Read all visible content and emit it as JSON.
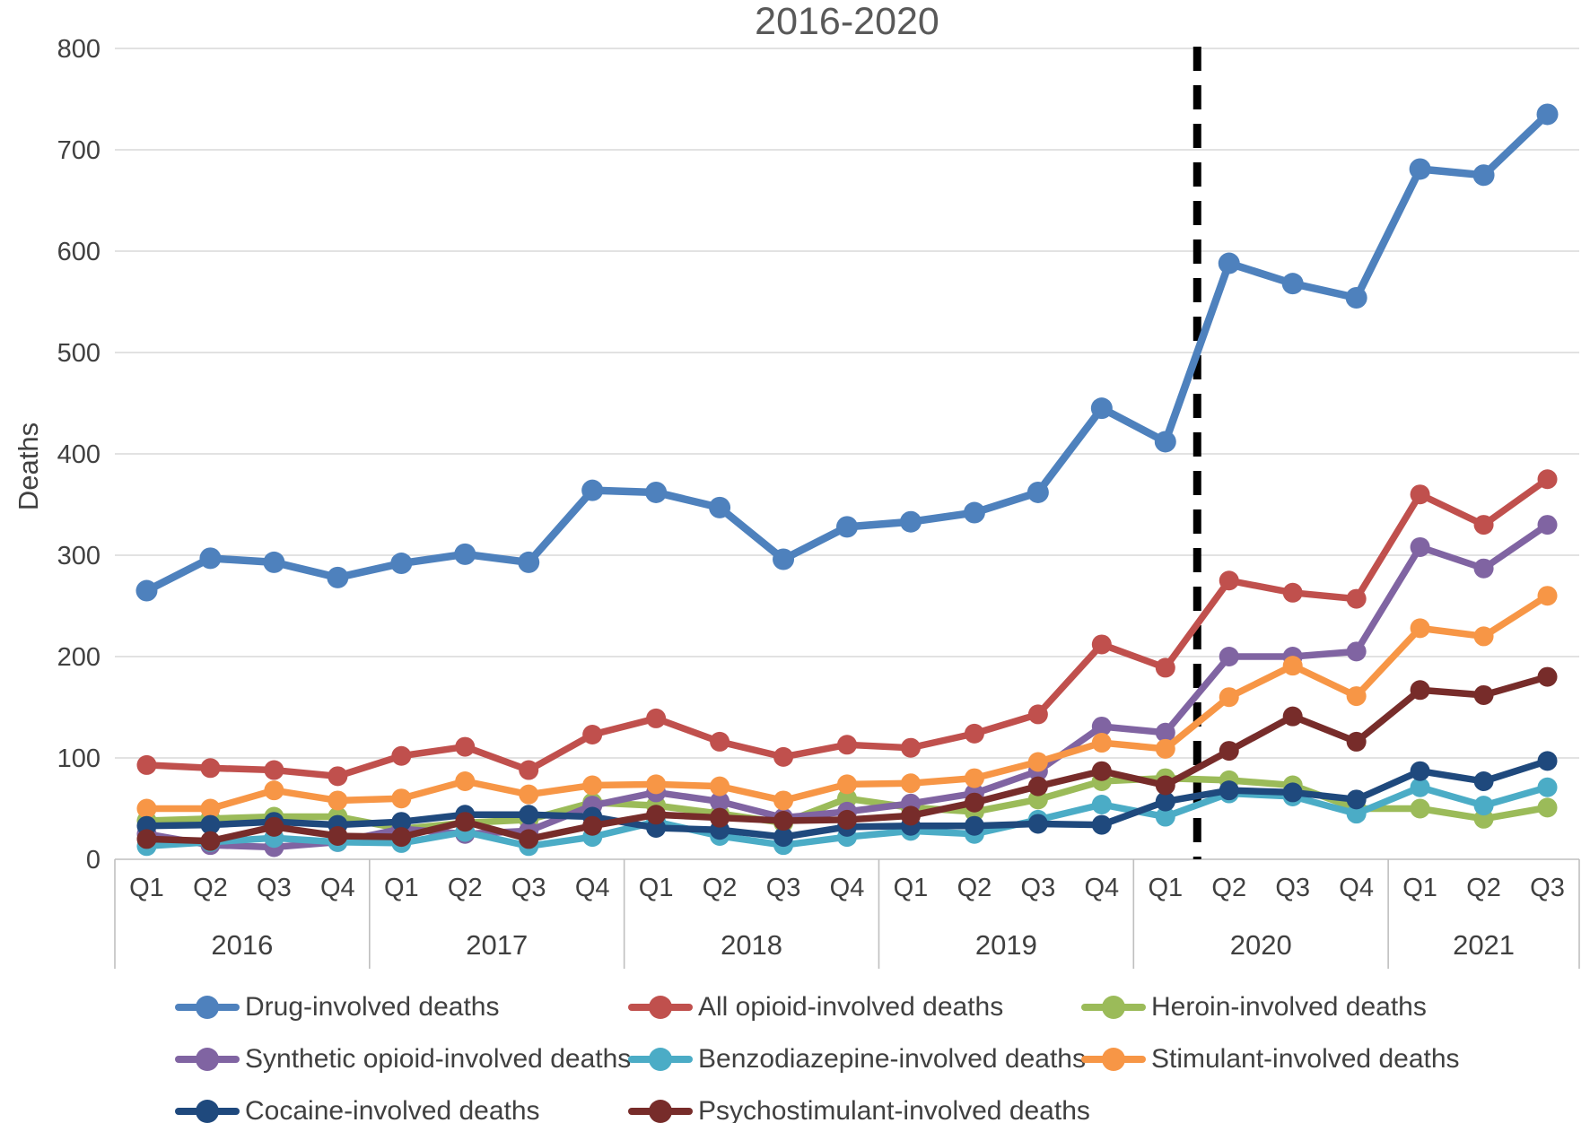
{
  "title": "2016-2020",
  "y_axis": {
    "label": "Deaths",
    "ticks": [
      0,
      100,
      200,
      300,
      400,
      500,
      600,
      700,
      800
    ]
  },
  "x_axis": {
    "years": [
      {
        "label": "2016",
        "quarters": [
          "Q1",
          "Q2",
          "Q3",
          "Q4"
        ]
      },
      {
        "label": "2017",
        "quarters": [
          "Q1",
          "Q2",
          "Q3",
          "Q4"
        ]
      },
      {
        "label": "2018",
        "quarters": [
          "Q1",
          "Q2",
          "Q3",
          "Q4"
        ]
      },
      {
        "label": "2019",
        "quarters": [
          "Q1",
          "Q2",
          "Q3",
          "Q4"
        ]
      },
      {
        "label": "2020",
        "quarters": [
          "Q1",
          "Q2",
          "Q3",
          "Q4"
        ]
      },
      {
        "label": "2021",
        "quarters": [
          "Q1",
          "Q2",
          "Q3"
        ]
      }
    ]
  },
  "chart_data": {
    "type": "line",
    "title": "2016-2020",
    "xlabel": "",
    "ylabel": "Deaths",
    "ylim": [
      0,
      800
    ],
    "y_ticks": [
      0,
      100,
      200,
      300,
      400,
      500,
      600,
      700,
      800
    ],
    "grid": "horizontal",
    "legend_position": "bottom",
    "x_categories": [
      "Q1 2016",
      "Q2 2016",
      "Q3 2016",
      "Q4 2016",
      "Q1 2017",
      "Q2 2017",
      "Q3 2017",
      "Q4 2017",
      "Q1 2018",
      "Q2 2018",
      "Q3 2018",
      "Q4 2018",
      "Q1 2019",
      "Q2 2019",
      "Q3 2019",
      "Q4 2019",
      "Q1 2020",
      "Q2 2020",
      "Q3 2020",
      "Q4 2020",
      "Q1 2021",
      "Q2 2021",
      "Q3 2021"
    ],
    "annotation": {
      "type": "dashed-vertical-line",
      "color": "#000000",
      "between_indices": [
        16,
        17
      ],
      "between_categories": [
        "Q1 2020",
        "Q2 2020"
      ]
    },
    "series": [
      {
        "name": "Drug-involved deaths",
        "color": "#4E81BD",
        "values": [
          265,
          297,
          293,
          278,
          292,
          301,
          293,
          364,
          362,
          347,
          296,
          328,
          333,
          342,
          362,
          445,
          412,
          588,
          568,
          554,
          681,
          675,
          735
        ]
      },
      {
        "name": "All opioid-involved deaths",
        "color": "#C0504D",
        "values": [
          93,
          90,
          88,
          82,
          102,
          111,
          88,
          123,
          139,
          116,
          101,
          113,
          110,
          124,
          143,
          212,
          189,
          275,
          263,
          257,
          360,
          330,
          375
        ]
      },
      {
        "name": "Heroin-involved deaths",
        "color": "#9BBB59",
        "values": [
          38,
          40,
          42,
          42,
          30,
          36,
          39,
          56,
          53,
          45,
          36,
          60,
          51,
          47,
          59,
          77,
          80,
          78,
          73,
          50,
          50,
          40,
          51
        ]
      },
      {
        "name": "Synthetic opioid-involved deaths",
        "color": "#8064A2",
        "values": [
          25,
          14,
          12,
          17,
          30,
          25,
          28,
          53,
          66,
          57,
          41,
          47,
          55,
          65,
          87,
          131,
          125,
          200,
          200,
          205,
          308,
          287,
          330
        ]
      },
      {
        "name": "Benzodiazepine-involved deaths",
        "color": "#4BACC6",
        "values": [
          13,
          17,
          21,
          17,
          16,
          27,
          13,
          22,
          37,
          23,
          14,
          22,
          28,
          25,
          39,
          54,
          42,
          65,
          62,
          45,
          71,
          53,
          71
        ]
      },
      {
        "name": "Stimulant-involved deaths",
        "color": "#F79646",
        "values": [
          50,
          50,
          68,
          58,
          60,
          77,
          64,
          73,
          74,
          72,
          58,
          74,
          75,
          80,
          96,
          115,
          109,
          160,
          191,
          161,
          228,
          220,
          260
        ]
      },
      {
        "name": "Cocaine-involved deaths",
        "color": "#1F497D",
        "values": [
          33,
          34,
          37,
          34,
          37,
          44,
          44,
          42,
          31,
          29,
          22,
          32,
          33,
          33,
          35,
          34,
          57,
          68,
          66,
          59,
          87,
          77,
          97
        ]
      },
      {
        "name": "Psychostimulant-involved deaths",
        "color": "#772C2A",
        "values": [
          20,
          18,
          32,
          23,
          22,
          37,
          20,
          33,
          44,
          41,
          38,
          39,
          43,
          56,
          72,
          87,
          73,
          107,
          141,
          116,
          167,
          162,
          180
        ]
      }
    ],
    "legend_rows": [
      [
        0,
        1,
        2
      ],
      [
        3,
        4,
        5
      ],
      [
        6,
        7
      ]
    ]
  }
}
